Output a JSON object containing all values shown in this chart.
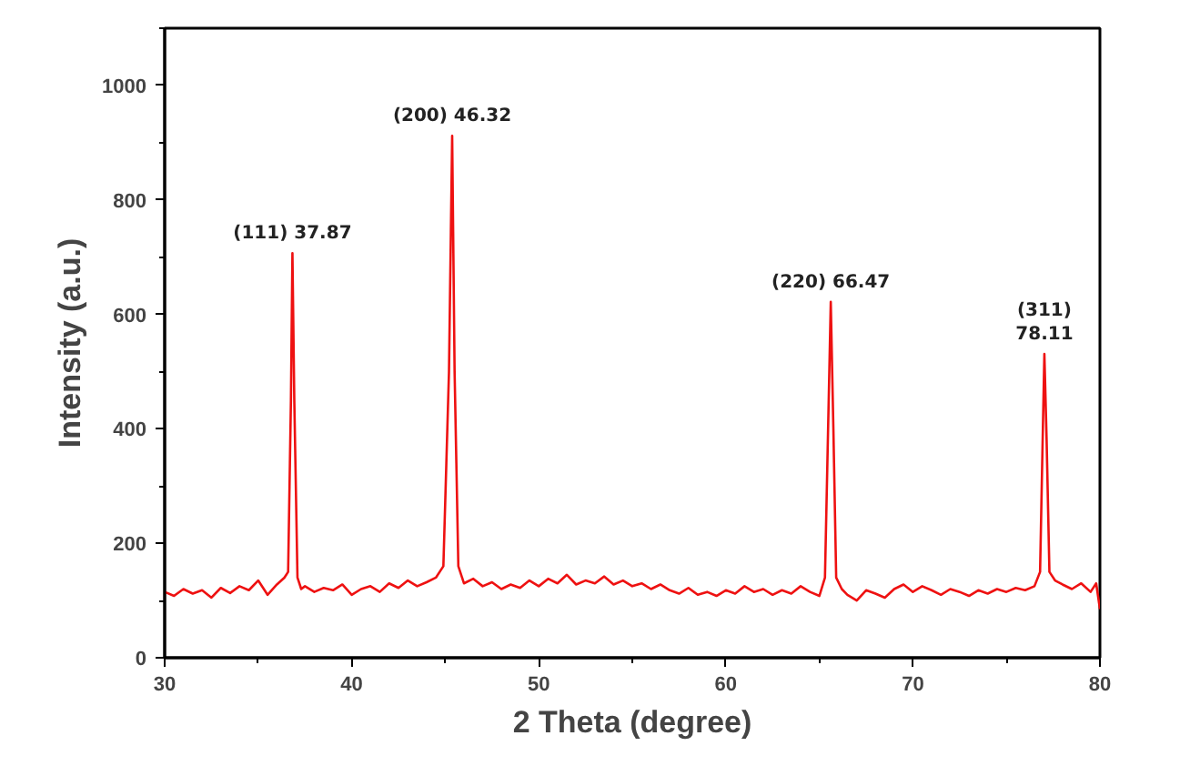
{
  "chart_data": {
    "type": "line",
    "xlabel": "2 Theta (degree)",
    "ylabel": "Intensity (a.u.)",
    "xlim": [
      30,
      80
    ],
    "ylim": [
      0,
      1100
    ],
    "xticks": [
      30,
      40,
      50,
      60,
      70,
      80
    ],
    "yticks": [
      0,
      200,
      400,
      600,
      800,
      1000
    ],
    "x": [
      30,
      30.5,
      31,
      31.5,
      32,
      32.5,
      33,
      33.5,
      34,
      34.5,
      35,
      35.5,
      36,
      36.4,
      36.6,
      36.75,
      36.83,
      36.93,
      37.1,
      37.3,
      37.5,
      38,
      38.5,
      39,
      39.5,
      40,
      40.5,
      41,
      41.5,
      42,
      42.5,
      43,
      43.5,
      44,
      44.5,
      44.9,
      45.2,
      45.37,
      45.5,
      45.7,
      46,
      46.5,
      47,
      47.5,
      48,
      48.5,
      49,
      49.5,
      50,
      50.5,
      51,
      51.5,
      52,
      52.5,
      53,
      53.5,
      54,
      54.5,
      55,
      55.5,
      56,
      56.5,
      57,
      57.5,
      58,
      58.5,
      59,
      59.5,
      60,
      60.5,
      61,
      61.5,
      62,
      62.5,
      63,
      63.5,
      64,
      64.5,
      65,
      65.3,
      65.5,
      65.61,
      65.75,
      65.9,
      66.2,
      66.5,
      67,
      67.5,
      68,
      68.5,
      69,
      69.5,
      70,
      70.5,
      71,
      71.5,
      72,
      72.5,
      73,
      73.5,
      74,
      74.5,
      75,
      75.5,
      76,
      76.5,
      76.8,
      76.95,
      77.03,
      77.15,
      77.3,
      77.6,
      78,
      78.5,
      79,
      79.5,
      79.8,
      80
    ],
    "series": [
      {
        "color": "#ee1111",
        "values": [
          115,
          108,
          120,
          112,
          118,
          105,
          122,
          113,
          125,
          118,
          135,
          110,
          128,
          140,
          150,
          450,
          707,
          450,
          140,
          120,
          125,
          115,
          122,
          118,
          128,
          110,
          120,
          125,
          115,
          130,
          122,
          135,
          125,
          132,
          140,
          160,
          500,
          912,
          500,
          160,
          130,
          138,
          125,
          132,
          120,
          128,
          122,
          135,
          125,
          138,
          130,
          145,
          128,
          135,
          130,
          142,
          128,
          135,
          125,
          130,
          120,
          128,
          118,
          112,
          122,
          110,
          115,
          108,
          118,
          112,
          125,
          115,
          120,
          110,
          118,
          112,
          125,
          115,
          108,
          140,
          450,
          622,
          400,
          140,
          120,
          110,
          100,
          118,
          112,
          105,
          120,
          128,
          115,
          125,
          118,
          110,
          120,
          115,
          108,
          118,
          112,
          120,
          115,
          122,
          118,
          125,
          150,
          400,
          531,
          380,
          150,
          135,
          128,
          120,
          130,
          115,
          130,
          85
        ]
      }
    ],
    "annotations": [
      {
        "text": "(111) 37.87",
        "x": 36.83,
        "y": 707
      },
      {
        "text": "(200) 46.32",
        "x": 45.37,
        "y": 912
      },
      {
        "text": "(220) 66.47",
        "x": 65.61,
        "y": 622
      },
      {
        "text": "(311)\n78.11",
        "x": 77.03,
        "y": 531
      }
    ]
  }
}
